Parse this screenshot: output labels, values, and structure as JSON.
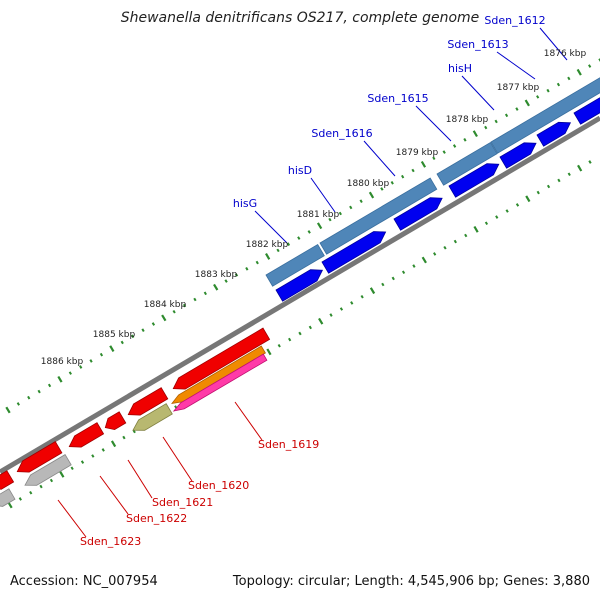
{
  "title": "Shewanella denitrificans OS217, complete genome",
  "footer": {
    "accession": "Accession: NC_007954",
    "summary": "Topology: circular; Length: 4,545,906 bp; Genes: 3,880"
  },
  "colors": {
    "forward_gene": "#0000f0",
    "forward_band": "#4f86b8",
    "reverse_gene": "#f00000",
    "orange_gene": "#f08a00",
    "magenta_gene": "#ff3aa8",
    "olive_gene": "#b8b870",
    "gray_gene": "#b8b8b8",
    "backbone": "#777777",
    "tick": "#2e8b2e",
    "forward_label": "#0000cc",
    "reverse_label": "#cc0000"
  },
  "kbp_ticks": [
    "1876 kbp",
    "1877 kbp",
    "1878 kbp",
    "1879 kbp",
    "1880 kbp",
    "1881 kbp",
    "1882 kbp",
    "1883 kbp",
    "1884 kbp",
    "1885 kbp",
    "1886 kbp"
  ],
  "forward_genes": [
    "Sden_1612",
    "Sden_1613",
    "hisH",
    "Sden_1615",
    "Sden_1616",
    "hisD",
    "hisG"
  ],
  "reverse_genes": [
    "Sden_1619",
    "Sden_1620",
    "Sden_1621",
    "Sden_1622",
    "Sden_1623"
  ]
}
